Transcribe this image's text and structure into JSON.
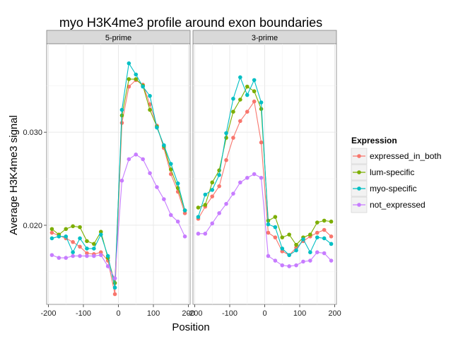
{
  "chart_data": {
    "type": "line",
    "title": "myo H3K4me3 profile around exon boundaries",
    "xlabel": "Position",
    "ylabel": "Average H3K4me3 signal",
    "x_ticks": [
      -200,
      -100,
      0,
      100,
      200
    ],
    "x_tick_labels": [
      "-200",
      "-100",
      "0",
      "100",
      "200"
    ],
    "y_ticks": [
      0.02,
      0.03
    ],
    "y_tick_labels": [
      "0.020",
      "0.030"
    ],
    "xlim": [
      -205,
      205
    ],
    "ylim": [
      0.0115,
      0.0395
    ],
    "grid": true,
    "legend": {
      "title": "Expression",
      "position": "right"
    },
    "colors": {
      "expressed_in_both": "#F8766D",
      "lum-specific": "#7CAE00",
      "myo-specific": "#00BFC4",
      "not_expressed": "#C77CFF"
    },
    "panels": [
      {
        "label": "5-prime",
        "x": [
          -190,
          -170,
          -150,
          -130,
          -110,
          -90,
          -70,
          -50,
          -30,
          -10,
          10,
          30,
          50,
          70,
          90,
          110,
          130,
          150,
          170,
          190
        ],
        "series": [
          {
            "name": "expressed_in_both",
            "values": [
              0.0192,
              0.0189,
              0.0186,
              0.0182,
              0.0177,
              0.017,
              0.0169,
              0.0171,
              0.0162,
              0.0126,
              0.031,
              0.0349,
              0.0356,
              0.0351,
              0.033,
              0.0307,
              0.0283,
              0.0255,
              0.0236,
              0.0213
            ]
          },
          {
            "name": "lum-specific",
            "values": [
              0.0196,
              0.019,
              0.0196,
              0.0199,
              0.0198,
              0.0183,
              0.018,
              0.0193,
              0.0165,
              0.0138,
              0.0318,
              0.0357,
              0.0357,
              0.035,
              0.0324,
              0.0306,
              0.0285,
              0.026,
              0.024,
              0.0216
            ]
          },
          {
            "name": "myo-specific",
            "values": [
              0.0186,
              0.0188,
              0.0188,
              0.0171,
              0.0186,
              0.0175,
              0.0175,
              0.019,
              0.0167,
              0.0133,
              0.0324,
              0.0374,
              0.0362,
              0.0349,
              0.0339,
              0.0305,
              0.0286,
              0.0266,
              0.0245,
              0.0216
            ]
          },
          {
            "name": "not_expressed",
            "values": [
              0.0168,
              0.0165,
              0.0165,
              0.0167,
              0.0167,
              0.0167,
              0.0167,
              0.0168,
              0.0156,
              0.0143,
              0.0248,
              0.0271,
              0.0276,
              0.0271,
              0.0256,
              0.0241,
              0.0228,
              0.0211,
              0.0204,
              0.0188
            ]
          }
        ]
      },
      {
        "label": "3-prime",
        "x": [
          -190,
          -170,
          -150,
          -130,
          -110,
          -90,
          -70,
          -50,
          -30,
          -10,
          10,
          30,
          50,
          70,
          90,
          110,
          130,
          150,
          170,
          190
        ],
        "series": [
          {
            "name": "expressed_in_both",
            "values": [
              0.0207,
              0.022,
              0.0231,
              0.0242,
              0.027,
              0.0294,
              0.0312,
              0.0322,
              0.0333,
              0.0289,
              0.0192,
              0.0187,
              0.0172,
              0.0168,
              0.0176,
              0.0183,
              0.0188,
              0.0192,
              0.0195,
              0.0188
            ]
          },
          {
            "name": "lum-specific",
            "values": [
              0.0219,
              0.0222,
              0.0246,
              0.0259,
              0.0294,
              0.0322,
              0.0335,
              0.0349,
              0.0344,
              0.0325,
              0.0205,
              0.0209,
              0.0187,
              0.019,
              0.0179,
              0.0187,
              0.019,
              0.0203,
              0.0205,
              0.0204
            ]
          },
          {
            "name": "myo-specific",
            "values": [
              0.0209,
              0.0233,
              0.0238,
              0.0254,
              0.0299,
              0.0336,
              0.0359,
              0.034,
              0.0356,
              0.0332,
              0.0201,
              0.0198,
              0.0175,
              0.0168,
              0.0173,
              0.0185,
              0.0171,
              0.0187,
              0.0186,
              0.018
            ]
          },
          {
            "name": "not_expressed",
            "values": [
              0.0191,
              0.0191,
              0.0202,
              0.0213,
              0.0223,
              0.0234,
              0.0246,
              0.0251,
              0.0255,
              0.0251,
              0.0167,
              0.0162,
              0.0157,
              0.0156,
              0.0157,
              0.0161,
              0.0162,
              0.0171,
              0.017,
              0.0162
            ]
          }
        ]
      }
    ]
  }
}
